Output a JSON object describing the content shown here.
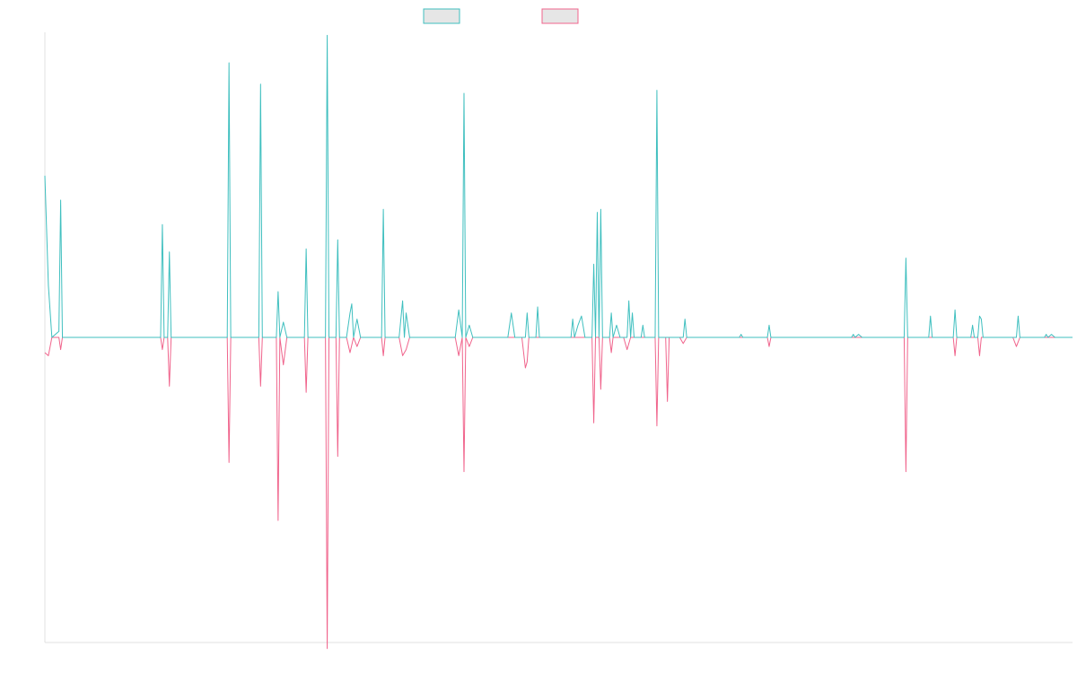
{
  "chart_data": {
    "type": "line",
    "title": "",
    "xlabel": "",
    "ylabel": "",
    "grid": false,
    "legend_position": "top-center",
    "ylim": [
      -100,
      100
    ],
    "x_range": [
      0,
      293
    ],
    "colors": {
      "series_a": "#3fbfbf",
      "series_b": "#f0648c",
      "legend_fill": "#e6e6e6",
      "axis": "#e0e0e0"
    },
    "series": [
      {
        "key": "a",
        "name": "",
        "points": [
          [
            0,
            53
          ],
          [
            1,
            17
          ],
          [
            2,
            0
          ],
          [
            3,
            1
          ],
          [
            4,
            2
          ],
          [
            4.5,
            45
          ],
          [
            5,
            0
          ],
          [
            11,
            0
          ],
          [
            17,
            0
          ],
          [
            33,
            0
          ],
          [
            33.5,
            37
          ],
          [
            34,
            0
          ],
          [
            35,
            0
          ],
          [
            35.5,
            28
          ],
          [
            36,
            0
          ],
          [
            52,
            0
          ],
          [
            52.5,
            90
          ],
          [
            53,
            0
          ],
          [
            61,
            0
          ],
          [
            61.5,
            83
          ],
          [
            62,
            0
          ],
          [
            66,
            0
          ],
          [
            66.5,
            15
          ],
          [
            67,
            0
          ],
          [
            68,
            5
          ],
          [
            69,
            0
          ],
          [
            74,
            0
          ],
          [
            74.5,
            29
          ],
          [
            75,
            0
          ],
          [
            80,
            0
          ],
          [
            80.5,
            99
          ],
          [
            81,
            0
          ],
          [
            83,
            0
          ],
          [
            83.5,
            32
          ],
          [
            84,
            0
          ],
          [
            86,
            0
          ],
          [
            87,
            8
          ],
          [
            87.5,
            11
          ],
          [
            88,
            0
          ],
          [
            89,
            6
          ],
          [
            90,
            0
          ],
          [
            96,
            0
          ],
          [
            96.5,
            42
          ],
          [
            97,
            0
          ],
          [
            101,
            0
          ],
          [
            102,
            12
          ],
          [
            102.5,
            0
          ],
          [
            103,
            8
          ],
          [
            104,
            0
          ],
          [
            108,
            0
          ],
          [
            117,
            0
          ],
          [
            118,
            9
          ],
          [
            119,
            0
          ],
          [
            119.5,
            80
          ],
          [
            120,
            0
          ],
          [
            121,
            4
          ],
          [
            122,
            0
          ],
          [
            132,
            0
          ],
          [
            133,
            8
          ],
          [
            134,
            0
          ],
          [
            137,
            0
          ],
          [
            137.5,
            8
          ],
          [
            138,
            0
          ],
          [
            140,
            0
          ],
          [
            140.5,
            10
          ],
          [
            141,
            0
          ],
          [
            150,
            0
          ],
          [
            150.5,
            6
          ],
          [
            151,
            0
          ],
          [
            152,
            4
          ],
          [
            153,
            7
          ],
          [
            154,
            0
          ],
          [
            156,
            0
          ],
          [
            156.5,
            24
          ],
          [
            157,
            0
          ],
          [
            157.5,
            41
          ],
          [
            158,
            0
          ],
          [
            158.5,
            42
          ],
          [
            159,
            0
          ],
          [
            161,
            0
          ],
          [
            161.5,
            8
          ],
          [
            162,
            0
          ],
          [
            163,
            4
          ],
          [
            164,
            0
          ],
          [
            166,
            0
          ],
          [
            166.5,
            12
          ],
          [
            167,
            0
          ],
          [
            167.5,
            8
          ],
          [
            168,
            0
          ],
          [
            170,
            0
          ],
          [
            170.5,
            4
          ],
          [
            171,
            0
          ],
          [
            174,
            0
          ],
          [
            174.5,
            81
          ],
          [
            175,
            0
          ],
          [
            182,
            0
          ],
          [
            182.5,
            6
          ],
          [
            183,
            0
          ],
          [
            185,
            0
          ],
          [
            198,
            0
          ],
          [
            198.5,
            1
          ],
          [
            199,
            0
          ],
          [
            206,
            0
          ],
          [
            206.5,
            4
          ],
          [
            207,
            0
          ],
          [
            212,
            0
          ],
          [
            218,
            0
          ],
          [
            230,
            0
          ],
          [
            230.5,
            1
          ],
          [
            231,
            0
          ],
          [
            232,
            1
          ],
          [
            233,
            0
          ],
          [
            245,
            0
          ],
          [
            245.5,
            26
          ],
          [
            246,
            0
          ],
          [
            252,
            0
          ],
          [
            252.5,
            7
          ],
          [
            253,
            0
          ],
          [
            259,
            0
          ],
          [
            259.5,
            9
          ],
          [
            260,
            0
          ],
          [
            264,
            0
          ],
          [
            264.5,
            4
          ],
          [
            265,
            0
          ],
          [
            266,
            0
          ],
          [
            266.5,
            7
          ],
          [
            267,
            6
          ],
          [
            267.5,
            0
          ],
          [
            277,
            0
          ],
          [
            277.5,
            7
          ],
          [
            278,
            0
          ],
          [
            285,
            0
          ],
          [
            285.5,
            1
          ],
          [
            286,
            0
          ],
          [
            287,
            1
          ],
          [
            288,
            0
          ],
          [
            293,
            0
          ]
        ]
      },
      {
        "key": "b",
        "name": "",
        "points": [
          [
            0,
            -5
          ],
          [
            1,
            -6
          ],
          [
            2,
            0
          ],
          [
            4,
            0
          ],
          [
            4.5,
            -4
          ],
          [
            5,
            0
          ],
          [
            33,
            0
          ],
          [
            33.5,
            -4
          ],
          [
            34,
            0
          ],
          [
            35,
            0
          ],
          [
            35.5,
            -16
          ],
          [
            36,
            0
          ],
          [
            52,
            0
          ],
          [
            52.5,
            -41
          ],
          [
            53,
            0
          ],
          [
            61,
            0
          ],
          [
            61.5,
            -16
          ],
          [
            62,
            0
          ],
          [
            66,
            0
          ],
          [
            66.5,
            -60
          ],
          [
            67,
            0
          ],
          [
            68,
            -9
          ],
          [
            69,
            0
          ],
          [
            74,
            0
          ],
          [
            74.5,
            -18
          ],
          [
            75,
            0
          ],
          [
            80,
            0
          ],
          [
            80.5,
            -102
          ],
          [
            81,
            0
          ],
          [
            83,
            0
          ],
          [
            83.5,
            -39
          ],
          [
            84,
            0
          ],
          [
            86,
            0
          ],
          [
            87,
            -5
          ],
          [
            88,
            0
          ],
          [
            89,
            -3
          ],
          [
            90,
            0
          ],
          [
            96,
            0
          ],
          [
            96.5,
            -6
          ],
          [
            97,
            0
          ],
          [
            101,
            0
          ],
          [
            102,
            -6
          ],
          [
            103,
            -4
          ],
          [
            104,
            0
          ],
          [
            117,
            0
          ],
          [
            118,
            -6
          ],
          [
            119,
            0
          ],
          [
            119.5,
            -44
          ],
          [
            120,
            0
          ],
          [
            121,
            -3
          ],
          [
            122,
            0
          ],
          [
            136,
            0
          ],
          [
            137,
            -10
          ],
          [
            137.5,
            -8
          ],
          [
            138,
            0
          ],
          [
            156,
            0
          ],
          [
            156.5,
            -28
          ],
          [
            157,
            0
          ],
          [
            158,
            0
          ],
          [
            158.5,
            -17
          ],
          [
            159,
            0
          ],
          [
            161,
            0
          ],
          [
            161.5,
            -5
          ],
          [
            162,
            0
          ],
          [
            165,
            0
          ],
          [
            166,
            -4
          ],
          [
            167,
            0
          ],
          [
            174,
            0
          ],
          [
            174.5,
            -29
          ],
          [
            175,
            0
          ],
          [
            177,
            0
          ],
          [
            177.5,
            -21
          ],
          [
            178,
            0
          ],
          [
            181,
            0
          ],
          [
            182,
            -2
          ],
          [
            183,
            0
          ],
          [
            206,
            0
          ],
          [
            206.5,
            -3
          ],
          [
            207,
            0
          ],
          [
            245,
            0
          ],
          [
            245.5,
            -44
          ],
          [
            246,
            0
          ],
          [
            259,
            0
          ],
          [
            259.5,
            -6
          ],
          [
            260,
            0
          ],
          [
            266,
            0
          ],
          [
            266.5,
            -6
          ],
          [
            267,
            0
          ],
          [
            276,
            0
          ],
          [
            277,
            -3
          ],
          [
            278,
            0
          ],
          [
            293,
            0
          ]
        ]
      }
    ]
  }
}
